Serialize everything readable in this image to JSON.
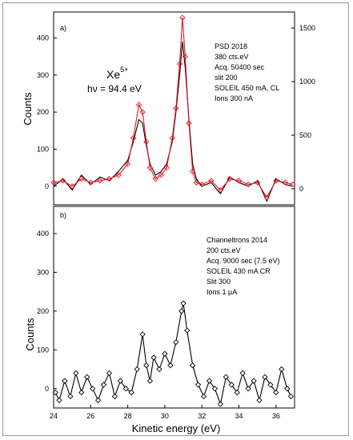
{
  "chart_data": [
    {
      "type": "line",
      "panel_label": "a)",
      "ylabel": "Counts",
      "xlim": [
        24,
        37
      ],
      "ylim": [
        -50,
        470
      ],
      "yticks": [
        0,
        100,
        200,
        300,
        400
      ],
      "ylim_right": [
        -150,
        1650
      ],
      "yticks_right": [
        0,
        500,
        1000,
        1500
      ],
      "ion_base": "Xe",
      "ion_charge": "5+",
      "photon_energy": "hν = 94.4 eV",
      "annotation": [
        "PSD 2018",
        "380 cts.eV",
        "Acq. 50400 sec",
        "slit 200",
        "SOLEIL 450 mA, CL",
        "Ions 300 nA"
      ],
      "series": [
        {
          "color": "#000000",
          "x": [
            24.0,
            24.5,
            25.0,
            25.5,
            26.0,
            26.5,
            27.0,
            27.5,
            28.0,
            28.3,
            28.6,
            28.8,
            29.0,
            29.2,
            29.5,
            29.8,
            30.1,
            30.4,
            30.6,
            30.8,
            30.95,
            31.1,
            31.3,
            31.5,
            31.7,
            32.0,
            32.5,
            33.0,
            33.5,
            34.0,
            34.5,
            35.0,
            35.5,
            36.0,
            36.5,
            36.9
          ],
          "y": [
            0,
            20,
            -10,
            30,
            5,
            25,
            15,
            40,
            70,
            120,
            180,
            170,
            110,
            60,
            30,
            40,
            60,
            120,
            200,
            300,
            390,
            320,
            180,
            60,
            20,
            0,
            10,
            -20,
            25,
            10,
            0,
            15,
            -40,
            20,
            5,
            0
          ]
        },
        {
          "color": "#e8141c",
          "x": [
            24.0,
            24.5,
            25.0,
            25.5,
            26.0,
            26.5,
            27.0,
            27.5,
            28.0,
            28.3,
            28.6,
            28.8,
            29.0,
            29.2,
            29.5,
            29.8,
            30.1,
            30.4,
            30.6,
            30.8,
            30.95,
            31.1,
            31.3,
            31.5,
            31.7,
            32.0,
            32.5,
            33.0,
            33.5,
            34.0,
            34.5,
            35.0,
            35.5,
            36.0,
            36.5,
            36.9
          ],
          "y": [
            10,
            15,
            0,
            20,
            10,
            15,
            20,
            30,
            60,
            130,
            220,
            200,
            120,
            50,
            20,
            30,
            50,
            130,
            210,
            330,
            455,
            350,
            170,
            40,
            10,
            5,
            15,
            -10,
            20,
            15,
            5,
            10,
            -30,
            15,
            10,
            5
          ]
        }
      ]
    },
    {
      "type": "line",
      "panel_label": "b)",
      "ylabel": "Counts",
      "xlabel": "Kinetic energy (eV)",
      "xlim": [
        24,
        37
      ],
      "xticks": [
        24,
        26,
        28,
        30,
        32,
        34,
        36
      ],
      "ylim": [
        -50,
        470
      ],
      "yticks": [
        0,
        100,
        200,
        300,
        400
      ],
      "annotation": [
        "Channeltrons 2014",
        "200 cts.eV",
        "Acq. 9000 sec (7.5 eV)",
        "SOLEIL 430 mA CR",
        "Slit 300",
        "Ions 1 µA"
      ],
      "series": [
        {
          "color": "#000000",
          "marker": "diamond",
          "x": [
            24.1,
            24.3,
            24.6,
            24.9,
            25.2,
            25.5,
            25.8,
            26.1,
            26.4,
            26.7,
            27.0,
            27.3,
            27.6,
            27.9,
            28.2,
            28.5,
            28.8,
            29.0,
            29.2,
            29.4,
            29.7,
            30.0,
            30.3,
            30.6,
            30.9,
            31.0,
            31.2,
            31.5,
            31.8,
            32.1,
            32.4,
            32.7,
            33.0,
            33.3,
            33.6,
            33.9,
            34.2,
            34.5,
            34.8,
            35.1,
            35.4,
            35.7,
            36.0,
            36.3,
            36.6,
            36.8
          ],
          "y": [
            -10,
            -30,
            20,
            -20,
            40,
            -10,
            30,
            0,
            -30,
            10,
            40,
            -20,
            20,
            0,
            -10,
            50,
            140,
            60,
            20,
            80,
            50,
            90,
            60,
            120,
            200,
            220,
            150,
            60,
            10,
            -20,
            20,
            0,
            -40,
            30,
            10,
            -10,
            40,
            0,
            20,
            -30,
            30,
            10,
            -10,
            50,
            0,
            -20
          ]
        }
      ]
    }
  ]
}
